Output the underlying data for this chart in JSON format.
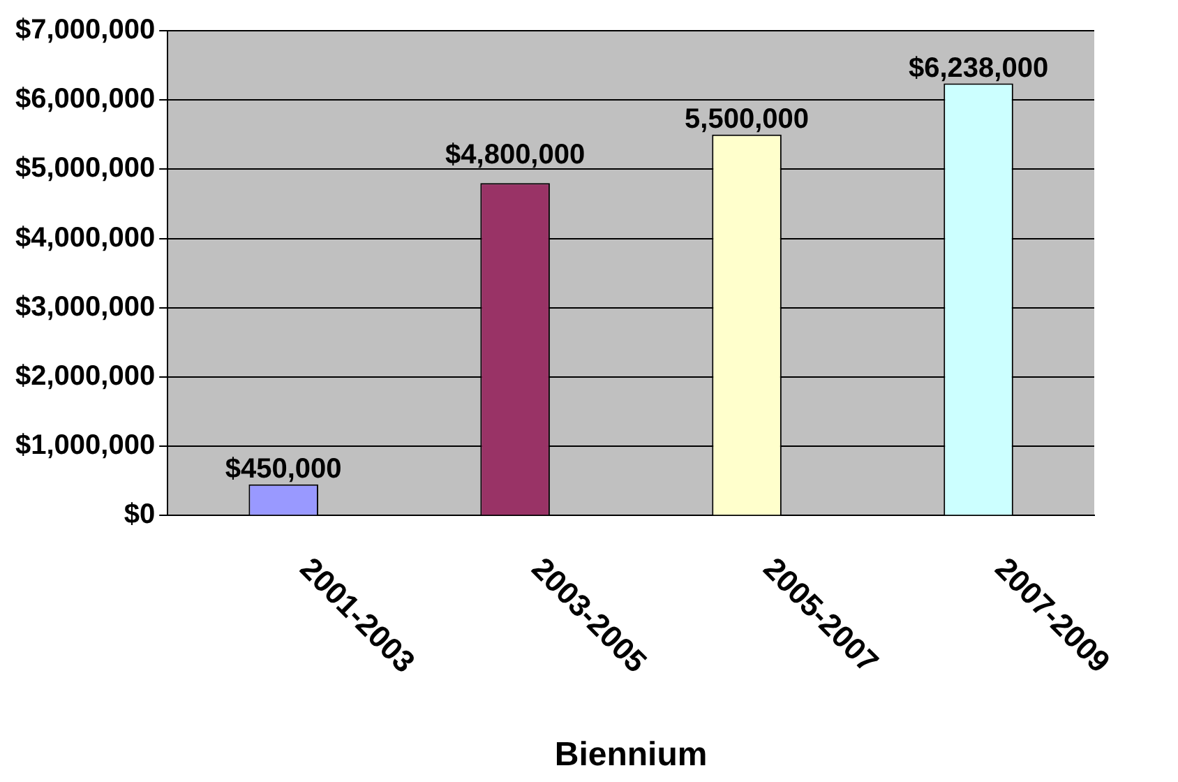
{
  "chart_data": {
    "type": "bar",
    "xlabel": "Biennium",
    "categories": [
      "2001-2003",
      "2003-2005",
      "2005-2007",
      "2007-2009"
    ],
    "values": [
      450000,
      4800000,
      5500000,
      6238000
    ],
    "value_labels": [
      "$450,000",
      "$4,800,000",
      "5,500,000",
      "$6,238,000"
    ],
    "colors": [
      "#9999ff",
      "#993366",
      "#ffffcc",
      "#ccffff"
    ],
    "ylim": [
      0,
      7000000
    ],
    "yticks": [
      {
        "value": 0,
        "label": "$0"
      },
      {
        "value": 1000000,
        "label": "$1,000,000"
      },
      {
        "value": 2000000,
        "label": "$2,000,000"
      },
      {
        "value": 3000000,
        "label": "$3,000,000"
      },
      {
        "value": 4000000,
        "label": "$4,000,000"
      },
      {
        "value": 5000000,
        "label": "$5,000,000"
      },
      {
        "value": 6000000,
        "label": "$6,000,000"
      },
      {
        "value": 7000000,
        "label": "$7,000,000"
      }
    ],
    "grid": "y",
    "legend": false
  }
}
